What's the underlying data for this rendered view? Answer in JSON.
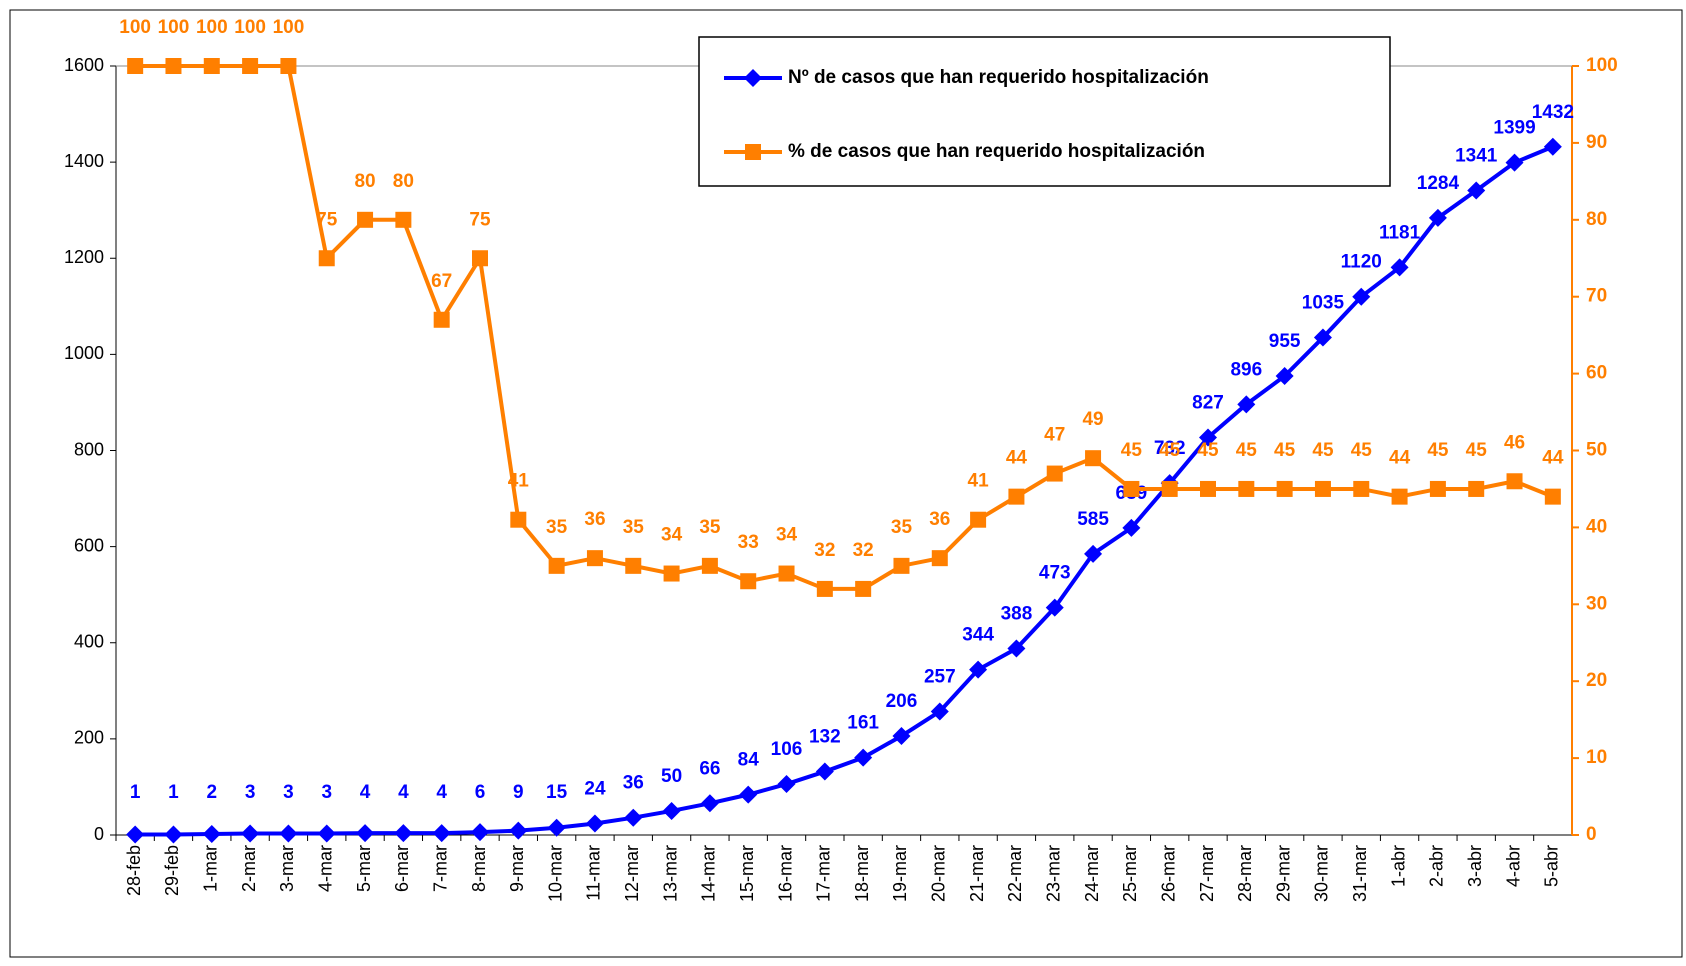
{
  "chart_data": {
    "type": "line",
    "categories": [
      "28-feb",
      "29-feb",
      "1-mar",
      "2-mar",
      "3-mar",
      "4-mar",
      "5-mar",
      "6-mar",
      "7-mar",
      "8-mar",
      "9-mar",
      "10-mar",
      "11-mar",
      "12-mar",
      "13-mar",
      "14-mar",
      "15-mar",
      "16-mar",
      "17-mar",
      "18-mar",
      "19-mar",
      "20-mar",
      "21-mar",
      "22-mar",
      "23-mar",
      "24-mar",
      "25-mar",
      "26-mar",
      "27-mar",
      "28-mar",
      "29-mar",
      "30-mar",
      "31-mar",
      "1-abr",
      "2-abr",
      "3-abr",
      "4-abr",
      "5-abr"
    ],
    "series": [
      {
        "name": "Nº de casos que han requerido hospitalización",
        "color": "#0000ff",
        "marker": "diamond",
        "values": [
          1,
          1,
          2,
          3,
          3,
          3,
          4,
          4,
          4,
          6,
          9,
          15,
          24,
          36,
          50,
          66,
          84,
          106,
          132,
          161,
          206,
          257,
          344,
          388,
          473,
          585,
          639,
          732,
          827,
          896,
          955,
          1035,
          1120,
          1181,
          1284,
          1341,
          1399,
          1432
        ]
      },
      {
        "name": "% de casos que han requerido hospitalización",
        "color": "#ff7f00",
        "marker": "square",
        "axis": "y2",
        "values": [
          100,
          100,
          100,
          100,
          100,
          75,
          80,
          80,
          67,
          75,
          41,
          35,
          36,
          35,
          34,
          35,
          33,
          34,
          32,
          32,
          35,
          36,
          41,
          44,
          47,
          49,
          45,
          45,
          45,
          45,
          45,
          45,
          45,
          44,
          45,
          45,
          46,
          44
        ]
      }
    ],
    "ylim": [
      0,
      1600
    ],
    "yticks": [
      0,
      200,
      400,
      600,
      800,
      1000,
      1200,
      1400,
      1600
    ],
    "y2lim": [
      0,
      100
    ],
    "y2ticks": [
      0,
      10,
      20,
      30,
      40,
      50,
      60,
      70,
      80,
      90,
      100
    ]
  }
}
